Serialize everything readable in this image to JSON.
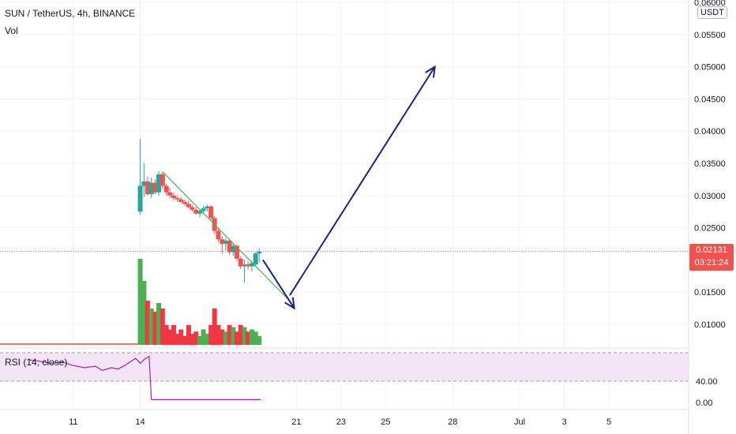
{
  "header": {
    "symbol": "SUN / TetherUS, 4h, BINANCE",
    "vol_label": "Vol",
    "rsi_label": "RSI (14, close)"
  },
  "price_axis": {
    "unit": "USDT",
    "ticks": [
      "0.06000",
      "0.05500",
      "0.05000",
      "0.04500",
      "0.04000",
      "0.03500",
      "0.03000",
      "0.02500",
      "0.01500",
      "0.01000"
    ],
    "current_price": "0.02131",
    "countdown": "03:21:24"
  },
  "rsi_axis": {
    "ticks": [
      "40.00",
      "0.00"
    ]
  },
  "time_axis": {
    "ticks": [
      "11",
      "14",
      "21",
      "23",
      "25",
      "28",
      "Jul",
      "3",
      "5"
    ]
  },
  "colors": {
    "up": "#26a69a",
    "down": "#ef5350",
    "volume_up": "#4caf50",
    "volume_down": "#f23645",
    "trendline": "#4caf50",
    "arrow": "#1a237e",
    "rsi_line": "#9c27b0",
    "rsi_band": "#f3e5f5",
    "price_line": "#ef5350"
  },
  "chart_data": {
    "type": "candlestick",
    "title": "SUN / TetherUS, 4h, BINANCE",
    "x_unit": "day of month (June, 4h bars)",
    "price_range": [
      0.005,
      0.06
    ],
    "candles": [
      {
        "t": 14.0,
        "o": 0.0275,
        "h": 0.0388,
        "l": 0.027,
        "c": 0.0315
      },
      {
        "t": 14.17,
        "o": 0.0315,
        "h": 0.035,
        "l": 0.0298,
        "c": 0.0322
      },
      {
        "t": 14.33,
        "o": 0.0322,
        "h": 0.033,
        "l": 0.03,
        "c": 0.0302
      },
      {
        "t": 14.5,
        "o": 0.0302,
        "h": 0.0328,
        "l": 0.0296,
        "c": 0.032
      },
      {
        "t": 14.67,
        "o": 0.032,
        "h": 0.0325,
        "l": 0.0302,
        "c": 0.0305
      },
      {
        "t": 14.83,
        "o": 0.0305,
        "h": 0.0338,
        "l": 0.03,
        "c": 0.0333
      },
      {
        "t": 15.0,
        "o": 0.0333,
        "h": 0.0336,
        "l": 0.031,
        "c": 0.0315
      },
      {
        "t": 15.17,
        "o": 0.0315,
        "h": 0.0318,
        "l": 0.03,
        "c": 0.0305
      },
      {
        "t": 15.33,
        "o": 0.0305,
        "h": 0.0312,
        "l": 0.0296,
        "c": 0.03
      },
      {
        "t": 15.5,
        "o": 0.03,
        "h": 0.0305,
        "l": 0.0292,
        "c": 0.0296
      },
      {
        "t": 15.67,
        "o": 0.0296,
        "h": 0.03,
        "l": 0.029,
        "c": 0.0294
      },
      {
        "t": 15.83,
        "o": 0.0294,
        "h": 0.0298,
        "l": 0.0288,
        "c": 0.029
      },
      {
        "t": 16.0,
        "o": 0.029,
        "h": 0.0294,
        "l": 0.0284,
        "c": 0.0287
      },
      {
        "t": 16.17,
        "o": 0.0287,
        "h": 0.0292,
        "l": 0.028,
        "c": 0.0282
      },
      {
        "t": 16.33,
        "o": 0.0282,
        "h": 0.0286,
        "l": 0.0275,
        "c": 0.0278
      },
      {
        "t": 16.5,
        "o": 0.0278,
        "h": 0.0282,
        "l": 0.027,
        "c": 0.0272
      },
      {
        "t": 16.67,
        "o": 0.0272,
        "h": 0.0278,
        "l": 0.0266,
        "c": 0.0276
      },
      {
        "t": 16.83,
        "o": 0.0276,
        "h": 0.0284,
        "l": 0.0272,
        "c": 0.028
      },
      {
        "t": 17.0,
        "o": 0.028,
        "h": 0.0286,
        "l": 0.0275,
        "c": 0.0283
      },
      {
        "t": 17.17,
        "o": 0.0283,
        "h": 0.0285,
        "l": 0.0262,
        "c": 0.0265
      },
      {
        "t": 17.33,
        "o": 0.0265,
        "h": 0.0268,
        "l": 0.024,
        "c": 0.0245
      },
      {
        "t": 17.5,
        "o": 0.0245,
        "h": 0.025,
        "l": 0.0228,
        "c": 0.0232
      },
      {
        "t": 17.67,
        "o": 0.0232,
        "h": 0.0236,
        "l": 0.021,
        "c": 0.0225
      },
      {
        "t": 17.83,
        "o": 0.0225,
        "h": 0.0234,
        "l": 0.0215,
        "c": 0.023
      },
      {
        "t": 18.0,
        "o": 0.023,
        "h": 0.0232,
        "l": 0.0208,
        "c": 0.0212
      },
      {
        "t": 18.17,
        "o": 0.0212,
        "h": 0.0226,
        "l": 0.0206,
        "c": 0.0222
      },
      {
        "t": 18.33,
        "o": 0.0222,
        "h": 0.0224,
        "l": 0.0198,
        "c": 0.0202
      },
      {
        "t": 18.5,
        "o": 0.0202,
        "h": 0.0206,
        "l": 0.0186,
        "c": 0.019
      },
      {
        "t": 18.67,
        "o": 0.019,
        "h": 0.02,
        "l": 0.0165,
        "c": 0.0193
      },
      {
        "t": 18.83,
        "o": 0.0193,
        "h": 0.0198,
        "l": 0.0185,
        "c": 0.019
      },
      {
        "t": 19.0,
        "o": 0.019,
        "h": 0.0198,
        "l": 0.0182,
        "c": 0.0195
      },
      {
        "t": 19.17,
        "o": 0.0193,
        "h": 0.0212,
        "l": 0.019,
        "c": 0.021
      },
      {
        "t": 19.33,
        "o": 0.021,
        "h": 0.0218,
        "l": 0.0196,
        "c": 0.0213
      }
    ],
    "volume": [
      78,
      58,
      40,
      33,
      30,
      38,
      33,
      18,
      14,
      18,
      10,
      14,
      8,
      18,
      10,
      12,
      8,
      14,
      10,
      18,
      33,
      18,
      14,
      12,
      18,
      16,
      12,
      18,
      16,
      12,
      14,
      12,
      8
    ],
    "volume_range": [
      0,
      100
    ],
    "rsi": [
      {
        "t": 9.0,
        "v": 60
      },
      {
        "t": 9.5,
        "v": 58
      },
      {
        "t": 10.0,
        "v": 55
      },
      {
        "t": 10.5,
        "v": 57
      },
      {
        "t": 11.0,
        "v": 52
      },
      {
        "t": 11.5,
        "v": 49
      },
      {
        "t": 12.0,
        "v": 51
      },
      {
        "t": 12.3,
        "v": 45
      },
      {
        "t": 12.7,
        "v": 49
      },
      {
        "t": 13.0,
        "v": 47
      },
      {
        "t": 13.3,
        "v": 52
      },
      {
        "t": 13.6,
        "v": 58
      },
      {
        "t": 13.8,
        "v": 62
      },
      {
        "t": 14.0,
        "v": 55
      },
      {
        "t": 14.2,
        "v": 61
      },
      {
        "t": 14.4,
        "v": 65
      },
      {
        "t": 14.5,
        "v": 4
      },
      {
        "t": 19.4,
        "v": 4
      }
    ],
    "rsi_range": [
      0,
      70
    ],
    "rsi_band": [
      30,
      70
    ],
    "trendline": {
      "from": {
        "t": 15.0,
        "p": 0.0337
      },
      "to": {
        "t": 20.6,
        "p": 0.014
      }
    },
    "arrows": [
      {
        "from": {
          "t": 19.5,
          "p": 0.02
        },
        "to": {
          "t": 20.9,
          "p": 0.0125
        }
      },
      {
        "from": {
          "t": 20.7,
          "p": 0.0145
        },
        "to": {
          "t": 27.2,
          "p": 0.05
        }
      }
    ],
    "current_price_line": 0.02131
  }
}
